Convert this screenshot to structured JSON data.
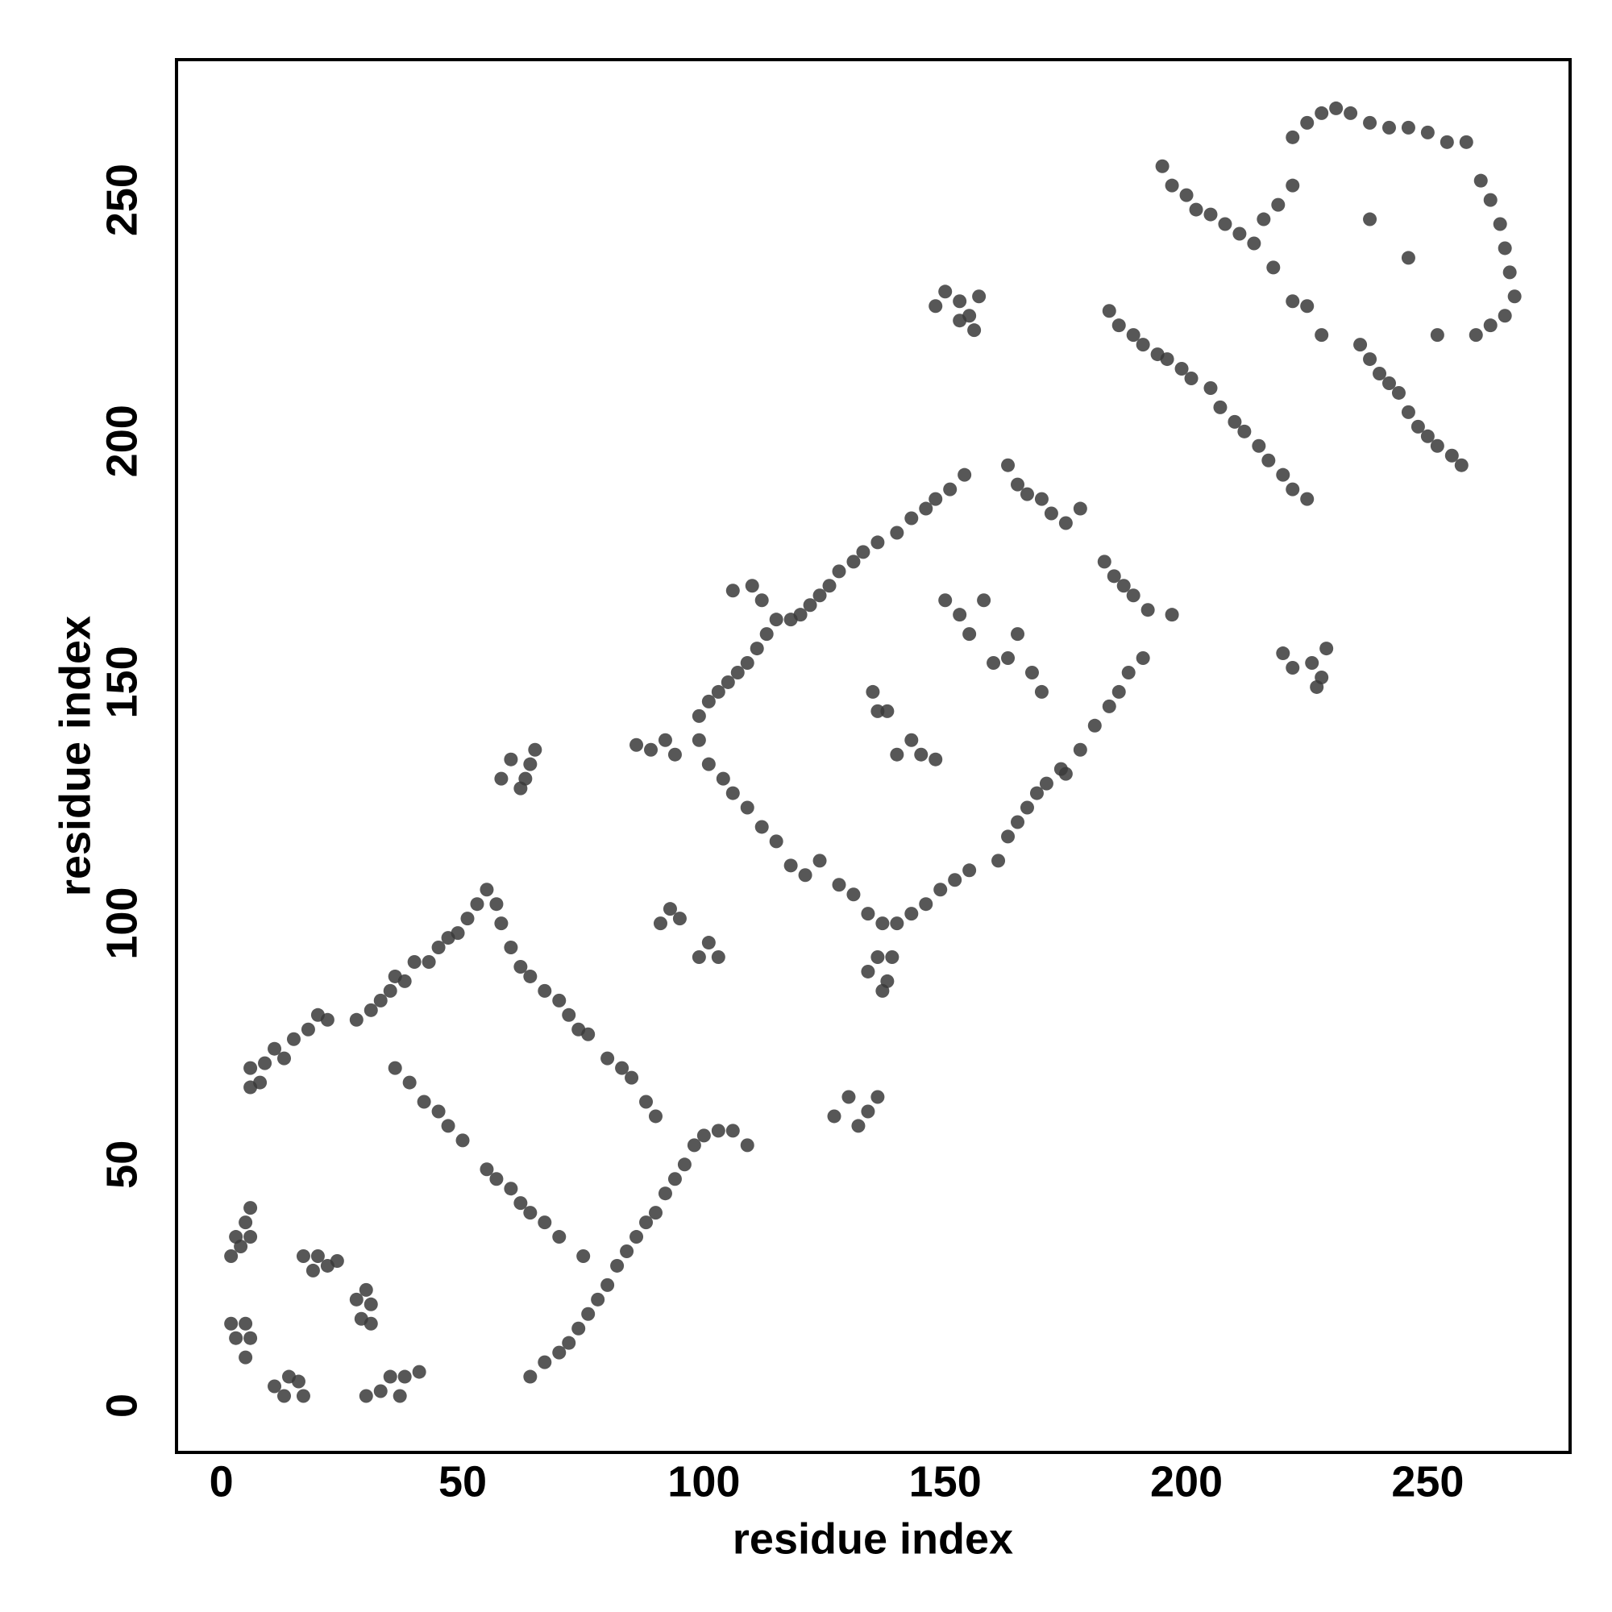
{
  "chart_data": {
    "type": "scatter",
    "xlabel": "residue index",
    "ylabel": "residue index",
    "color": "#3a3a3a",
    "xlim": [
      -9.3,
      279.5
    ],
    "ylim": [
      -9.7,
      279.1
    ],
    "xticks": [
      0,
      50,
      100,
      150,
      200,
      250
    ],
    "yticks": [
      0,
      50,
      100,
      150,
      200,
      250
    ],
    "grid": false,
    "x": [
      2,
      3,
      5,
      6,
      4,
      6,
      2,
      5,
      3,
      6,
      5,
      11,
      14,
      16,
      13,
      17,
      17,
      20,
      19,
      22,
      24,
      28,
      31,
      30,
      31,
      29,
      30,
      33,
      35,
      37,
      38,
      41,
      6,
      9,
      11,
      13,
      15,
      18,
      20,
      22,
      28,
      31,
      33,
      35,
      36,
      38,
      40,
      43,
      45,
      47,
      49,
      51,
      53,
      55,
      57,
      58,
      6,
      8,
      60,
      62,
      64,
      67,
      70,
      72,
      74,
      76,
      80,
      83,
      85,
      88,
      90,
      36,
      39,
      42,
      45,
      47,
      50,
      55,
      57,
      60,
      62,
      64,
      67,
      70,
      75,
      64,
      67,
      70,
      72,
      74,
      76,
      78,
      80,
      82,
      84,
      86,
      88,
      90,
      92,
      94,
      96,
      98,
      100,
      103,
      106,
      109,
      58,
      60,
      62,
      64,
      65,
      63,
      91,
      93,
      95,
      99,
      101,
      103,
      86,
      89,
      92,
      94,
      127,
      130,
      132,
      134,
      136,
      99,
      101,
      103,
      105,
      107,
      109,
      111,
      113,
      115,
      118,
      120,
      122,
      124,
      126,
      128,
      131,
      133,
      136,
      140,
      143,
      146,
      148,
      151,
      154,
      163,
      165,
      167,
      170,
      172,
      175,
      178,
      183,
      185,
      187,
      189,
      192,
      197,
      175,
      178,
      181,
      184,
      186,
      188,
      191,
      161,
      163,
      165,
      167,
      169,
      171,
      174,
      128,
      131,
      134,
      137,
      140,
      143,
      146,
      149,
      152,
      155,
      99,
      101,
      104,
      106,
      109,
      112,
      115,
      118,
      121,
      124,
      134,
      136,
      138,
      137,
      139,
      135,
      136,
      138,
      140,
      143,
      145,
      148,
      150,
      153,
      155,
      158,
      160,
      163,
      165,
      168,
      170,
      106,
      110,
      112,
      148,
      150,
      153,
      155,
      156,
      157,
      153,
      184,
      186,
      189,
      191,
      194,
      196,
      199,
      201,
      205,
      207,
      210,
      212,
      215,
      217,
      220,
      222,
      225,
      220,
      222,
      226,
      228,
      229,
      227,
      195,
      197,
      200,
      202,
      205,
      208,
      211,
      214,
      216,
      219,
      222,
      222,
      225,
      228,
      231,
      234,
      238,
      242,
      246,
      250,
      254,
      258,
      261,
      263,
      265,
      266,
      267,
      268,
      266,
      263,
      260,
      238,
      240,
      242,
      244,
      246,
      248,
      250,
      252,
      255,
      257,
      238,
      246,
      222,
      228,
      236,
      252,
      218,
      225
    ],
    "values": [
      31,
      35,
      38,
      35,
      33,
      41,
      17,
      17,
      14,
      14,
      10,
      4,
      6,
      5,
      2,
      2,
      31,
      31,
      28,
      29,
      30,
      22,
      21,
      24,
      17,
      18,
      2,
      3,
      6,
      2,
      6,
      7,
      70,
      71,
      74,
      72,
      76,
      78,
      81,
      80,
      80,
      82,
      84,
      86,
      89,
      88,
      92,
      92,
      95,
      97,
      98,
      101,
      104,
      107,
      104,
      100,
      66,
      67,
      95,
      91,
      89,
      86,
      84,
      81,
      78,
      77,
      72,
      70,
      68,
      63,
      60,
      70,
      67,
      63,
      61,
      58,
      55,
      49,
      47,
      45,
      42,
      40,
      38,
      35,
      31,
      6,
      9,
      11,
      13,
      16,
      19,
      22,
      25,
      29,
      32,
      35,
      38,
      40,
      44,
      47,
      50,
      54,
      56,
      57,
      57,
      54,
      130,
      134,
      128,
      133,
      136,
      130,
      100,
      103,
      101,
      93,
      96,
      93,
      137,
      136,
      138,
      135,
      60,
      64,
      58,
      61,
      64,
      143,
      146,
      148,
      150,
      152,
      154,
      157,
      160,
      163,
      163,
      164,
      166,
      168,
      170,
      173,
      175,
      177,
      179,
      181,
      184,
      186,
      188,
      190,
      193,
      195,
      191,
      189,
      188,
      185,
      183,
      186,
      175,
      172,
      170,
      168,
      165,
      164,
      131,
      136,
      141,
      145,
      148,
      152,
      155,
      113,
      118,
      121,
      124,
      127,
      129,
      132,
      108,
      106,
      102,
      100,
      100,
      102,
      104,
      107,
      109,
      111,
      138,
      133,
      130,
      127,
      124,
      120,
      117,
      112,
      110,
      113,
      90,
      93,
      88,
      86,
      93,
      148,
      144,
      144,
      135,
      138,
      135,
      134,
      167,
      164,
      160,
      167,
      154,
      155,
      160,
      152,
      148,
      169,
      170,
      167,
      228,
      231,
      229,
      226,
      223,
      230,
      225,
      227,
      224,
      222,
      220,
      218,
      217,
      215,
      213,
      211,
      207,
      204,
      202,
      199,
      196,
      193,
      190,
      188,
      156,
      153,
      154,
      151,
      157,
      149,
      257,
      253,
      251,
      248,
      247,
      245,
      243,
      241,
      246,
      249,
      253,
      263,
      266,
      268,
      269,
      268,
      266,
      265,
      265,
      264,
      262,
      262,
      254,
      250,
      245,
      240,
      235,
      230,
      226,
      224,
      222,
      217,
      214,
      212,
      210,
      206,
      203,
      201,
      199,
      197,
      195,
      246,
      238,
      229,
      222,
      220,
      222,
      236,
      228
    ]
  }
}
